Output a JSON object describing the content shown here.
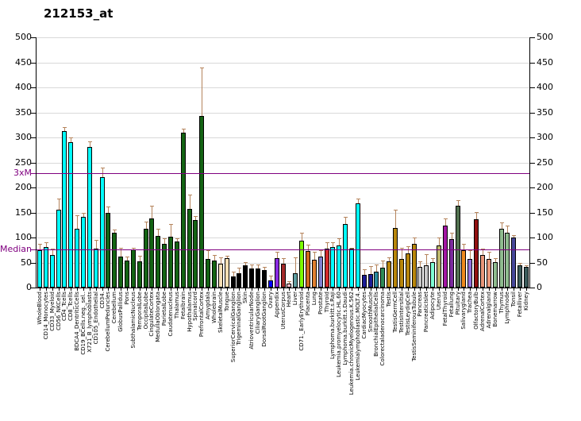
{
  "title": "212153_at",
  "chart_data": {
    "type": "bar",
    "title": "212153_at",
    "xlabel": "",
    "ylabel": "",
    "ylim": [
      0,
      500
    ],
    "yticks": [
      0,
      50,
      100,
      150,
      200,
      250,
      300,
      350,
      400,
      450,
      500
    ],
    "grid": true,
    "grid_color": "#d9d9d9",
    "axis_color": "#000000",
    "error_bar_color": "#b5845c",
    "ref_line_color": "#800080",
    "reference_lines": [
      {
        "label": "3xM",
        "value": 229
      },
      {
        "label": "Median",
        "value": 76
      }
    ],
    "categories": [
      "WholeBlood",
      "CD14_Monocytes",
      "CD33_Myeloid",
      "CD56_NKCells",
      "CD4_Tcells",
      "CD8_Tcells",
      "BDCA4_DentriticCells",
      "CD19_BCells.neg._sel..",
      "X721_B_lymphoblasts",
      "CD105_Endothelial",
      "CD34.",
      "CerebellumPeduncles",
      "Cerebellum",
      "GlobusPallidus",
      "Pons",
      "SubthalamicNucleus",
      "TemporalLobe",
      "OccipitalLobe",
      "CingulateCortex",
      "MedullaOblongata",
      "ParietalLobe",
      "Caudatenucleus",
      "Thalamus",
      "Fetalbrain",
      "Hypothalamus",
      "Spinalcord",
      "PrefrontalCortex",
      "Amygdala",
      "Wholebrain",
      "SkeletalMuscle",
      "Tongue",
      "SuperiorCervicalGanglion",
      "TrigeminalGanglion",
      "Skin",
      "AtrioventricularNode",
      "CiliaryGanglion",
      "DorsalRootGanglion",
      "Ovary",
      "Appendix",
      "UterusCorpus",
      "Heart",
      "Liver",
      "CD71._EarlyErythroid",
      "Placenta",
      "Lung",
      "Prostate",
      "Thyroid",
      "Lymphoma.burkitt.s.Raji",
      "Leukemia.promyelocytic.HL.60",
      "Lymphoma.burkitt.s.Daudi",
      "Leukemia.chronicMyelogenous.K.562",
      "Leukemialymphoblastic.MOLT.4.",
      "CardiacMyocytes",
      "SmoothMuscle",
      "BronchialEpithelialCells",
      "Colorectaladenocarcinoma",
      "Testis",
      "TestisGermCell",
      "TestisIntersitial",
      "TestisLeydigCell",
      "TestisSeminiferousTubule",
      "Pancreas",
      "PancreaticIslet",
      "Adipocyte",
      "Uterus",
      "FetalThyroid",
      "Fetallung",
      "Pituitary",
      "Salivarygland",
      "Trachea",
      "OlfactoryBulb",
      "AdrenalCortex",
      "Adrenalgland",
      "Bonemarrow",
      "Thymus",
      "Lymphnode",
      "Tonsil",
      "Fetalliver",
      "Kidney"
    ],
    "values": [
      75,
      81,
      65,
      155,
      313,
      290,
      117,
      141,
      281,
      78,
      221,
      149,
      109,
      62,
      54,
      76,
      52,
      117,
      138,
      103,
      87,
      101,
      92,
      310,
      157,
      135,
      343,
      57,
      54,
      48,
      59,
      22,
      28,
      44,
      38,
      38,
      35,
      15,
      59,
      48,
      8,
      28,
      94,
      73,
      56,
      62,
      78,
      81,
      84,
      127,
      77,
      168,
      26,
      27,
      32,
      40,
      52,
      119,
      57,
      68,
      87,
      41,
      44,
      51,
      84,
      124,
      97,
      163,
      75,
      57,
      136,
      65,
      57,
      51,
      118,
      110,
      100,
      44,
      42
    ],
    "errors_high": [
      87,
      90,
      78,
      178,
      321,
      300,
      145,
      150,
      292,
      95,
      240,
      162,
      116,
      80,
      62,
      79,
      63,
      131,
      163,
      117,
      98,
      127,
      99,
      318,
      185,
      143,
      440,
      75,
      65,
      60,
      64,
      32,
      40,
      51,
      46,
      46,
      41,
      24,
      71,
      59,
      12,
      61,
      110,
      85,
      72,
      75,
      91,
      90,
      98,
      141,
      79,
      178,
      37,
      43,
      46,
      54,
      60,
      156,
      80,
      83,
      100,
      52,
      67,
      59,
      100,
      138,
      109,
      175,
      87,
      75,
      151,
      77,
      71,
      58,
      130,
      124,
      104,
      50,
      45
    ],
    "colors": [
      "#00FFFF",
      "#00FFFF",
      "#00FFFF",
      "#00FFFF",
      "#00FFFF",
      "#00FFFF",
      "#00FFFF",
      "#00FFFF",
      "#00FFFF",
      "#00FFFF",
      "#00FFFF",
      "#146414",
      "#146414",
      "#146414",
      "#146414",
      "#146414",
      "#146414",
      "#146414",
      "#146414",
      "#146414",
      "#146414",
      "#146414",
      "#146414",
      "#146414",
      "#146414",
      "#146414",
      "#146414",
      "#146414",
      "#146414",
      "#F5DEB3",
      "#F5DEB3",
      "#000000",
      "#000000",
      "#000000",
      "#000000",
      "#000000",
      "#000000",
      "#0000FF",
      "#8A2BE2",
      "#A52A2A",
      "#FFC0CB",
      "#5F9EA0",
      "#7CFC00",
      "#D2691E",
      "#E08030",
      "#8080D0",
      "#D42A2A",
      "#00FFFF",
      "#00FFFF",
      "#00FFFF",
      "#00FFFF",
      "#00FFFF",
      "#1C1C96",
      "#1C1C96",
      "#2A8BA0",
      "#2E8B57",
      "#B8860B",
      "#B8860B",
      "#B8860B",
      "#B8860B",
      "#B8860B",
      "#C8C8C8",
      "#C8C8C8",
      "#7FFFD4",
      "#BDB76B",
      "#A316A3",
      "#7C2B9E",
      "#52714F",
      "#EF8A1E",
      "#9370DB",
      "#921111",
      "#E9967A",
      "#E9967A",
      "#8FBC8F",
      "#8FBC8F",
      "#8FBC8F",
      "#47479B",
      "#3D5C5C",
      "#3D5C5C"
    ]
  }
}
